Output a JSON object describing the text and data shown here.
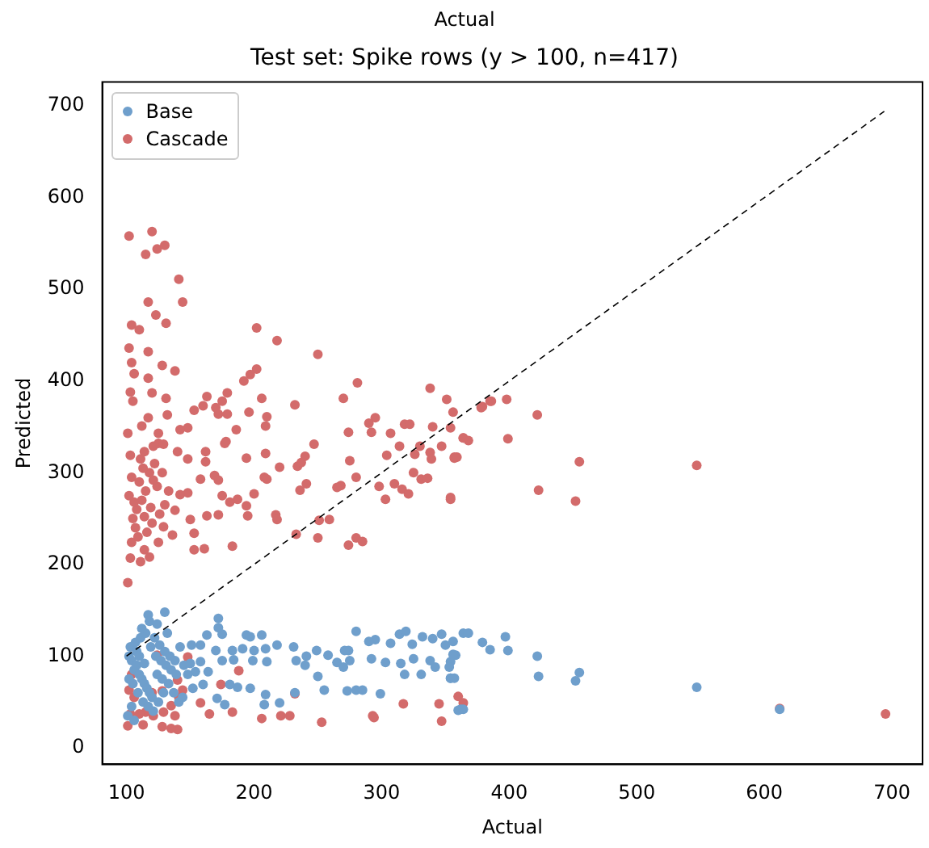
{
  "chart_data": {
    "type": "scatter",
    "title": "Test set: Spike rows (y > 100, n=417)",
    "xlabel": "Actual",
    "ylabel": "Predicted",
    "annotations": [
      "Actual"
    ],
    "xlim": [
      81,
      724
    ],
    "ylim": [
      -18,
      726
    ],
    "xticks": [
      100,
      200,
      300,
      400,
      500,
      600,
      700
    ],
    "yticks": [
      0,
      100,
      200,
      300,
      400,
      500,
      600,
      700
    ],
    "grid": false,
    "legend": "top left",
    "marker": "circle",
    "series": [
      {
        "name": "Base",
        "color": "#6f9fcc",
        "x": [
          117,
          130,
          118,
          124,
          172,
          172,
          175,
          163,
          194,
          197,
          206,
          280,
          314,
          319,
          332,
          347,
          364,
          368,
          379,
          385,
          350,
          340,
          324,
          307,
          295,
          290,
          274,
          271,
          258,
          249,
          241,
          231,
          218,
          209,
          200,
          191,
          183,
          170,
          158,
          151,
          142,
          175,
          184,
          199,
          210,
          233,
          240,
          250,
          265,
          270,
          275,
          292,
          303,
          315,
          325,
          338,
          342,
          354,
          358,
          318,
          331,
          280,
          285,
          273,
          299,
          255,
          232,
          220,
          208,
          209,
          197,
          187,
          181,
          171,
          177,
          160,
          164,
          154,
          150,
          158,
          362,
          360,
          397,
          399,
          422,
          423,
          452,
          455,
          547,
          612,
          354,
          353,
          356,
          354,
          357,
          356,
          364,
          102,
          104,
          106,
          108,
          110,
          112,
          114,
          116,
          118,
          120,
          103,
          107,
          111,
          115,
          119,
          123,
          127,
          131,
          135,
          139,
          105,
          109,
          113,
          117,
          121,
          125,
          129,
          133,
          137,
          141,
          102,
          104,
          108,
          112,
          122,
          126,
          130,
          134,
          138,
          145,
          148,
          152,
          144,
          101,
          106,
          110,
          124,
          128,
          132,
          114
        ],
        "values": [
          145,
          148,
          138,
          135,
          141,
          131,
          124,
          123,
          123,
          121,
          123,
          127,
          124,
          127,
          121,
          124,
          125,
          125,
          115,
          107,
          112,
          119,
          113,
          114,
          118,
          116,
          106,
          106,
          101,
          106,
          100,
          110,
          112,
          108,
          106,
          108,
          106,
          106,
          112,
          112,
          110,
          95,
          96,
          95,
          94,
          95,
          90,
          78,
          93,
          88,
          95,
          97,
          93,
          92,
          97,
          95,
          88,
          76,
          101,
          80,
          80,
          63,
          63,
          62,
          59,
          63,
          60,
          49,
          47,
          58,
          65,
          66,
          69,
          54,
          47,
          69,
          83,
          83,
          92,
          94,
          42,
          41,
          121,
          106,
          100,
          78,
          73,
          82,
          66,
          42,
          94,
          88,
          102,
          76,
          76,
          116,
          42,
          100,
          95,
          85,
          90,
          80,
          75,
          70,
          65,
          60,
          55,
          110,
          115,
          120,
          125,
          110,
          100,
          95,
          90,
          85,
          80,
          70,
          60,
          50,
          45,
          40,
          50,
          60,
          70,
          60,
          50,
          75,
          45,
          105,
          130,
          120,
          112,
          105,
          100,
          95,
          90,
          80,
          65,
          55,
          35,
          30,
          100,
          80,
          75,
          125,
          92
        ]
      },
      {
        "name": "Cascade",
        "color": "#d36b6b",
        "x": [
          102,
          120,
          115,
          124,
          130,
          141,
          144,
          117,
          123,
          104,
          110,
          131,
          202,
          218,
          250,
          102,
          117,
          104,
          128,
          138,
          106,
          117,
          202,
          197,
          192,
          281,
          338,
          103,
          120,
          179,
          163,
          206,
          351,
          105,
          131,
          175,
          160,
          232,
          270,
          170,
          153,
          172,
          196,
          179,
          356,
          379,
          385,
          210,
          117,
          132,
          101,
          125,
          112,
          148,
          142,
          186,
          209,
          295,
          290,
          274,
          307,
          318,
          322,
          340,
          354,
          364,
          368,
          292,
          178,
          177,
          247,
          314,
          326,
          330,
          338,
          347,
          357,
          359,
          339,
          103,
          114,
          121,
          125,
          129,
          140,
          148,
          162,
          162,
          194,
          209,
          220,
          234,
          237,
          240,
          275,
          304,
          325,
          331,
          336,
          310,
          316,
          321,
          303,
          354,
          298,
          280,
          268,
          265,
          241,
          236,
          251,
          259,
          233,
          250,
          274,
          280,
          285,
          208,
          210,
          217,
          218,
          194,
          195,
          200,
          187,
          181,
          175,
          183,
          161,
          153,
          172,
          163,
          153,
          150,
          142,
          148,
          158,
          169,
          172,
          136,
          138,
          129,
          104,
          103,
          111,
          118,
          114,
          125,
          105,
          108,
          112,
          115,
          110,
          118,
          122,
          113,
          107,
          126,
          130,
          120,
          116,
          133,
          102,
          104,
          111,
          124,
          128,
          109,
          119,
          114,
          106,
          121,
          101,
          148,
          124,
          188,
          174,
          232,
          140,
          144,
          128,
          120,
          104,
          102,
          106,
          115,
          110,
          121,
          129,
          138,
          140,
          135,
          128,
          113,
          101,
          103,
          165,
          183,
          206,
          221,
          228,
          253,
          293,
          294,
          317,
          345,
          347,
          360,
          364,
          135,
          141,
          158,
          547,
          455,
          423,
          452,
          422,
          398,
          386,
          378,
          399,
          364,
          354,
          357,
          612,
          695
        ],
        "values": [
          558,
          563,
          538,
          544,
          548,
          511,
          486,
          486,
          472,
          461,
          456,
          463,
          458,
          444,
          429,
          436,
          432,
          420,
          417,
          411,
          408,
          403,
          413,
          407,
          400,
          398,
          392,
          388,
          387,
          387,
          383,
          381,
          380,
          378,
          381,
          378,
          373,
          374,
          381,
          371,
          368,
          364,
          366,
          364,
          366,
          372,
          378,
          361,
          360,
          363,
          343,
          343,
          351,
          349,
          347,
          347,
          351,
          360,
          354,
          344,
          343,
          353,
          353,
          350,
          349,
          338,
          335,
          344,
          334,
          332,
          331,
          329,
          320,
          329,
          322,
          329,
          316,
          317,
          315,
          319,
          323,
          329,
          332,
          331,
          323,
          315,
          323,
          312,
          316,
          321,
          306,
          307,
          311,
          318,
          313,
          319,
          300,
          293,
          294,
          288,
          282,
          277,
          271,
          271,
          285,
          295,
          286,
          284,
          288,
          281,
          248,
          249,
          233,
          229,
          221,
          229,
          225,
          295,
          293,
          254,
          249,
          264,
          253,
          277,
          271,
          268,
          275,
          220,
          217,
          216,
          254,
          253,
          234,
          249,
          276,
          278,
          293,
          297,
          292,
          232,
          259,
          241,
          224,
          207,
          203,
          208,
          216,
          224,
          250,
          260,
          270,
          280,
          290,
          300,
          310,
          305,
          240,
          255,
          265,
          245,
          235,
          280,
          275,
          295,
          315,
          285,
          300,
          230,
          262,
          252,
          268,
          292,
          180,
          99,
          101,
          84,
          69,
          59,
          74,
          63,
          62,
          60,
          80,
          63,
          55,
          39,
          37,
          35,
          39,
          35,
          20,
          21,
          23,
          25,
          24,
          37,
          37,
          39,
          32,
          35,
          35,
          28,
          35,
          33,
          48,
          48,
          29,
          56,
          49,
          46,
          55,
          49,
          308,
          312,
          281,
          269,
          363,
          380,
          378,
          371,
          337,
          338,
          273,
          317,
          43,
          37
        ]
      },
      {
        "type": "line",
        "color": "#000000",
        "line_style": "dashed",
        "marker": "none",
        "x": [
          100,
          694
        ],
        "values": [
          100,
          694
        ]
      }
    ]
  }
}
